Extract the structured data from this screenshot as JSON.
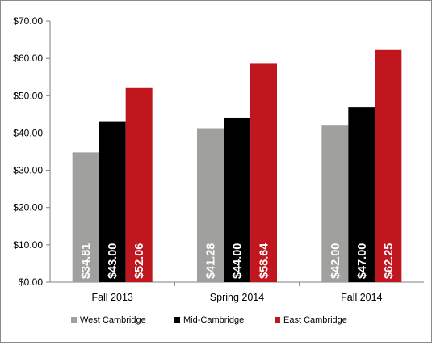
{
  "chart_data": {
    "type": "bar",
    "title": "",
    "xlabel": "",
    "ylabel": "",
    "categories": [
      "Fall 2013",
      "Spring 2014",
      "Fall 2014"
    ],
    "ylim": [
      0,
      70
    ],
    "yticks": [
      0,
      10,
      20,
      30,
      40,
      50,
      60,
      70
    ],
    "ytick_labels": [
      "$0.00",
      "$10.00",
      "$20.00",
      "$30.00",
      "$40.00",
      "$50.00",
      "$60.00",
      "$70.00"
    ],
    "grid": false,
    "legend_position": "bottom",
    "data_label_orientation": "vertical",
    "series": [
      {
        "name": "West Cambridge",
        "color": "#a0a09f",
        "values": [
          34.81,
          41.28,
          42.0
        ],
        "labels": [
          "$34.81",
          "$41.28",
          "$42.00"
        ]
      },
      {
        "name": "Mid-Cambridge",
        "color": "#000000",
        "values": [
          43.0,
          44.0,
          47.0
        ],
        "labels": [
          "$43.00",
          "$44.00",
          "$47.00"
        ]
      },
      {
        "name": "East Cambridge",
        "color": "#c0161e",
        "values": [
          52.06,
          58.64,
          62.25
        ],
        "labels": [
          "$52.06",
          "$58.64",
          "$62.25"
        ]
      }
    ]
  }
}
